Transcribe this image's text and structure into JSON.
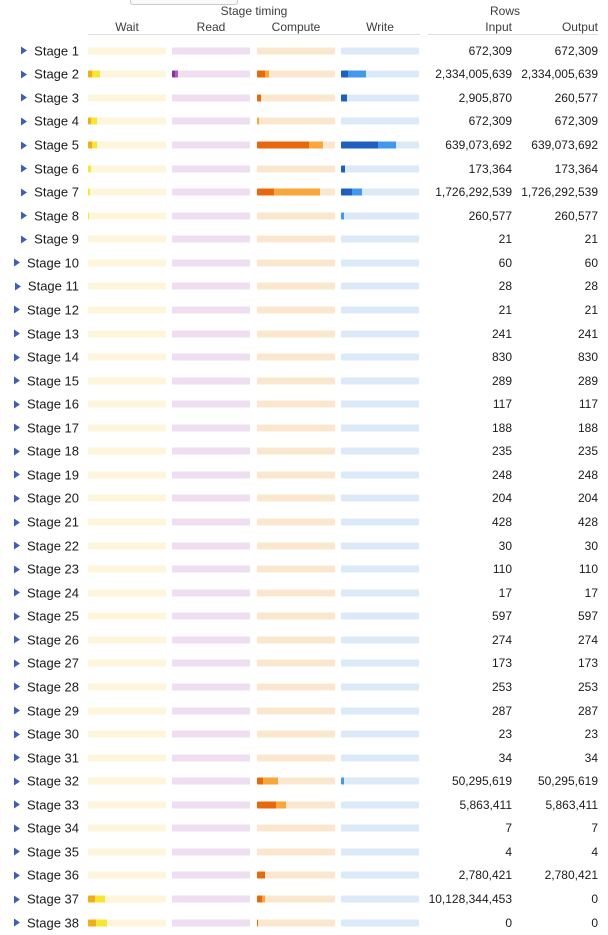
{
  "header": {
    "stage_timing": "Stage timing",
    "rows": "Rows",
    "wait": "Wait",
    "read": "Read",
    "compute": "Compute",
    "write": "Write",
    "input": "Input",
    "output": "Output"
  },
  "colors": {
    "wait_bg": "#FDF6DB",
    "wait_max": "#EFAF1C",
    "wait_avg": "#F8E535",
    "read_bg": "#EEDEF0",
    "read_max": "#86309F",
    "read_avg": "#AC5CC3",
    "compute_bg": "#FBE7CD",
    "compute_max": "#E8680E",
    "compute_avg": "#F9A63A",
    "write_bg": "#DCEAF8",
    "write_max": "#1F5FC2",
    "write_avg": "#4198EC",
    "expander": "#3E5EB8"
  },
  "stages": [
    {
      "label": "Stage 1",
      "input": "672,309",
      "output": "672,309",
      "timing": {}
    },
    {
      "label": "Stage 2",
      "input": "2,334,005,639",
      "output": "2,334,005,639",
      "timing": {
        "wait": [
          5.1,
          10.3
        ],
        "read": [
          3.8,
          3.8
        ],
        "compute": [
          10.3,
          5.1
        ],
        "write": [
          9,
          23
        ]
      }
    },
    {
      "label": "Stage 3",
      "input": "2,905,870",
      "output": "260,577",
      "timing": {
        "compute": [
          5.1,
          0
        ],
        "write": [
          7.7,
          0
        ]
      }
    },
    {
      "label": "Stage 4",
      "input": "672,309",
      "output": "672,309",
      "timing": {
        "wait": [
          3.8,
          7.7
        ],
        "compute": [
          0,
          2.6
        ]
      }
    },
    {
      "label": "Stage 5",
      "input": "639,073,692",
      "output": "639,073,692",
      "timing": {
        "wait": [
          5.1,
          6.4
        ],
        "compute": [
          66.7,
          17.9
        ],
        "write": [
          47.4,
          23.1
        ]
      }
    },
    {
      "label": "Stage 6",
      "input": "173,364",
      "output": "173,364",
      "timing": {
        "wait": [
          0,
          3.8
        ],
        "write": [
          5.1,
          0
        ]
      }
    },
    {
      "label": "Stage 7",
      "input": "1,726,292,539",
      "output": "1,726,292,539",
      "timing": {
        "wait": [
          0,
          2.6
        ],
        "compute": [
          21.8,
          59
        ],
        "write": [
          14.1,
          12.8
        ]
      }
    },
    {
      "label": "Stage 8",
      "input": "260,577",
      "output": "260,577",
      "timing": {
        "wait": [
          0,
          1.3
        ],
        "write": [
          0,
          3.8
        ]
      }
    },
    {
      "label": "Stage 9",
      "input": "21",
      "output": "21",
      "timing": {}
    },
    {
      "label": "Stage 10",
      "input": "60",
      "output": "60",
      "timing": {}
    },
    {
      "label": "Stage 11",
      "input": "28",
      "output": "28",
      "timing": {}
    },
    {
      "label": "Stage 12",
      "input": "21",
      "output": "21",
      "timing": {}
    },
    {
      "label": "Stage 13",
      "input": "241",
      "output": "241",
      "timing": {}
    },
    {
      "label": "Stage 14",
      "input": "830",
      "output": "830",
      "timing": {}
    },
    {
      "label": "Stage 15",
      "input": "289",
      "output": "289",
      "timing": {}
    },
    {
      "label": "Stage 16",
      "input": "117",
      "output": "117",
      "timing": {}
    },
    {
      "label": "Stage 17",
      "input": "188",
      "output": "188",
      "timing": {}
    },
    {
      "label": "Stage 18",
      "input": "235",
      "output": "235",
      "timing": {}
    },
    {
      "label": "Stage 19",
      "input": "248",
      "output": "248",
      "timing": {}
    },
    {
      "label": "Stage 20",
      "input": "204",
      "output": "204",
      "timing": {}
    },
    {
      "label": "Stage 21",
      "input": "428",
      "output": "428",
      "timing": {}
    },
    {
      "label": "Stage 22",
      "input": "30",
      "output": "30",
      "timing": {}
    },
    {
      "label": "Stage 23",
      "input": "110",
      "output": "110",
      "timing": {}
    },
    {
      "label": "Stage 24",
      "input": "17",
      "output": "17",
      "timing": {}
    },
    {
      "label": "Stage 25",
      "input": "597",
      "output": "597",
      "timing": {}
    },
    {
      "label": "Stage 26",
      "input": "274",
      "output": "274",
      "timing": {}
    },
    {
      "label": "Stage 27",
      "input": "173",
      "output": "173",
      "timing": {}
    },
    {
      "label": "Stage 28",
      "input": "253",
      "output": "253",
      "timing": {}
    },
    {
      "label": "Stage 29",
      "input": "287",
      "output": "287",
      "timing": {}
    },
    {
      "label": "Stage 30",
      "input": "23",
      "output": "23",
      "timing": {}
    },
    {
      "label": "Stage 31",
      "input": "34",
      "output": "34",
      "timing": {}
    },
    {
      "label": "Stage 32",
      "input": "50,295,619",
      "output": "50,295,619",
      "timing": {
        "compute": [
          7.7,
          19.2
        ],
        "write": [
          0,
          3.8
        ]
      }
    },
    {
      "label": "Stage 33",
      "input": "5,863,411",
      "output": "5,863,411",
      "timing": {
        "compute": [
          24.4,
          12.8
        ]
      }
    },
    {
      "label": "Stage 34",
      "input": "7",
      "output": "7",
      "timing": {}
    },
    {
      "label": "Stage 35",
      "input": "4",
      "output": "4",
      "timing": {}
    },
    {
      "label": "Stage 36",
      "input": "2,780,421",
      "output": "2,780,421",
      "timing": {
        "compute": [
          10.3,
          0
        ]
      }
    },
    {
      "label": "Stage 37",
      "input": "10,128,344,453",
      "output": "0",
      "timing": {
        "wait": [
          9,
          12.8
        ],
        "compute": [
          6.4,
          3.8
        ]
      }
    },
    {
      "label": "Stage 38",
      "input": "0",
      "output": "0",
      "timing": {
        "wait": [
          10.3,
          14.1
        ],
        "compute": [
          1.3,
          0
        ]
      }
    }
  ]
}
